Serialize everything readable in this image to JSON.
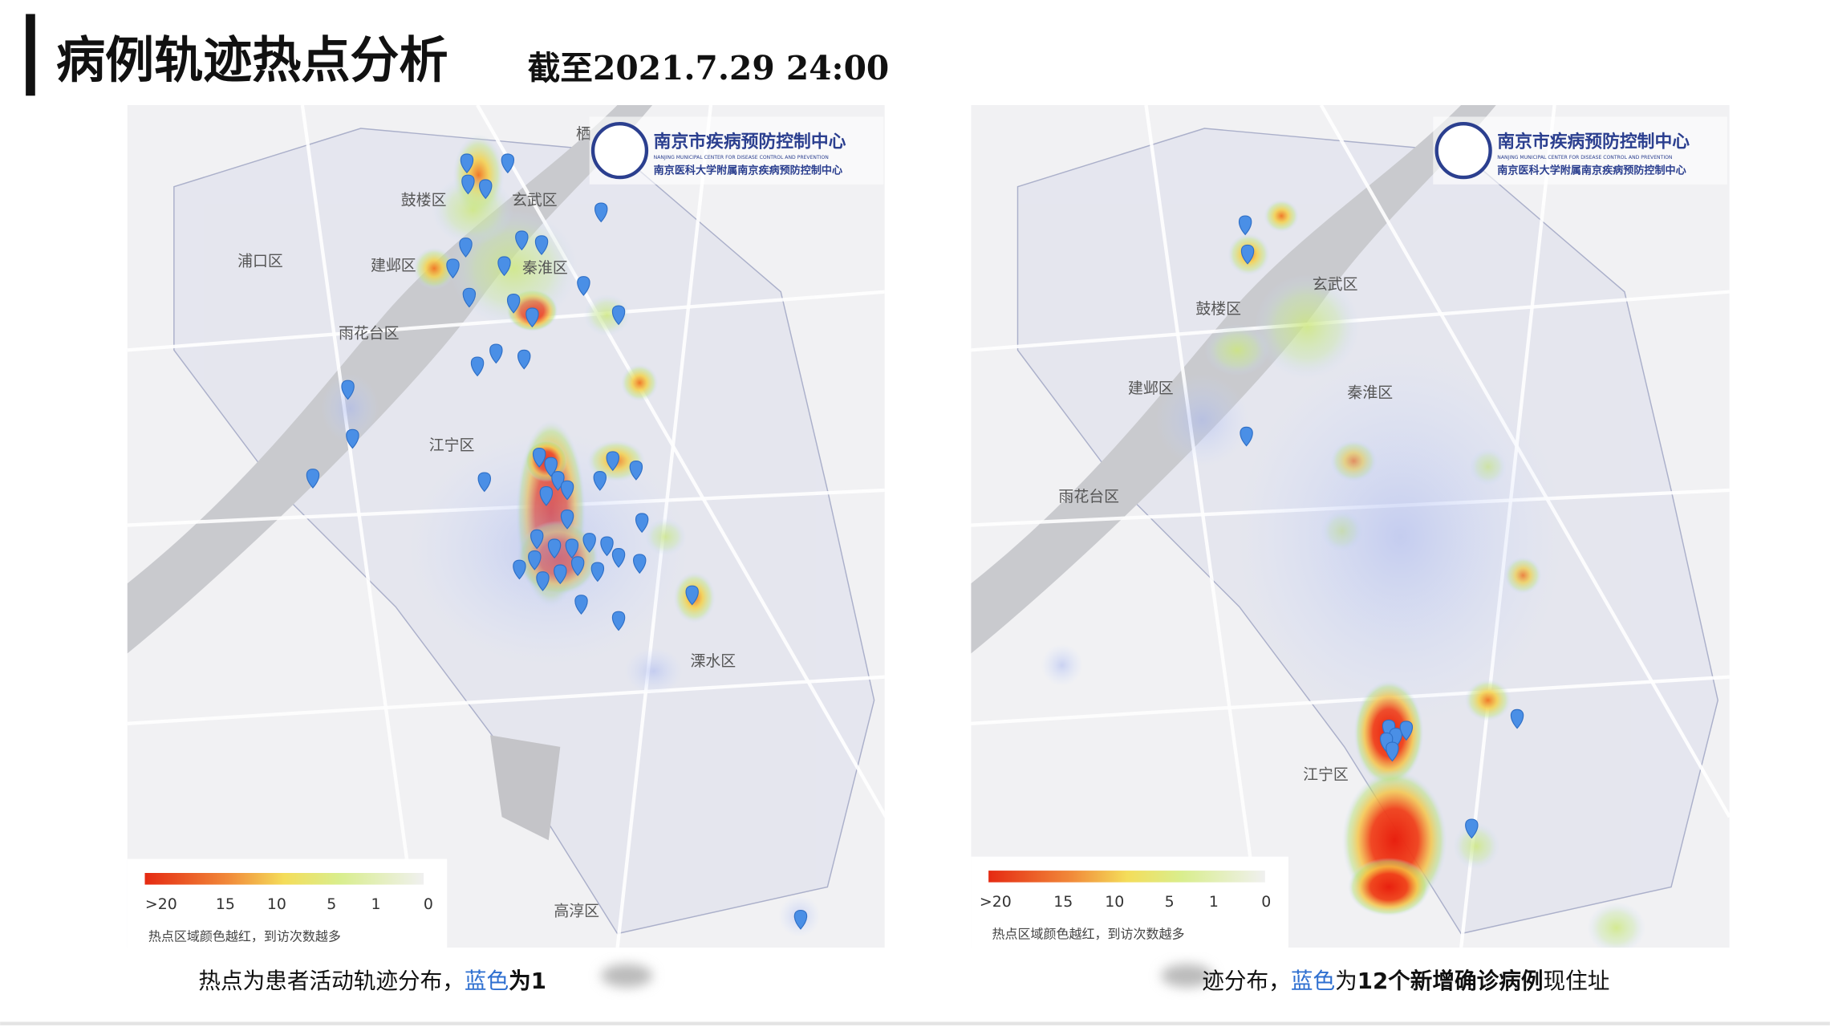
{
  "header": {
    "title": "病例轨迹热点分析",
    "subtitle": "截至2021.7.29 24:00"
  },
  "maps": [
    {
      "logo": {
        "name": "南京市疾病预防控制中心",
        "english": "NANJING MUNICIPAL CENTER FOR DISEASE CONTROL AND PREVENTION",
        "affiliation": "南京医科大学附属南京疾病预防控制中心"
      },
      "districts": [
        "栖",
        "鼓楼区",
        "玄武区",
        "浦口区",
        "建邺区",
        "秦淮区",
        "雨花台区",
        "江宁区",
        "溧水区",
        "高淳区"
      ],
      "legend": {
        "labels": [
          ">20",
          "15",
          "10",
          "5",
          "1",
          "0"
        ],
        "note": "热点区域颜色越红，到访次数越多"
      },
      "caption": [
        "热点为患者活动轨迹分布，",
        "蓝色",
        "为1"
      ]
    },
    {
      "logo": {
        "name": "南京市疾病预防控制中心",
        "english": "NANJING MUNICIPAL CENTER FOR DISEASE CONTROL AND PREVENTION",
        "affiliation": "南京医科大学附属南京疾病预防控制中心"
      },
      "districts": [
        "玄武区",
        "鼓楼区",
        "建邺区",
        "秦淮区",
        "雨花台区",
        "江宁区"
      ],
      "legend": {
        "labels": [
          ">20",
          "15",
          "10",
          "5",
          "1",
          "0"
        ],
        "note": "热点区域颜色越红，到访次数越多"
      },
      "caption": [
        "迹分布，",
        "蓝色",
        "为",
        "12个新增确诊病例",
        "现住址"
      ]
    }
  ]
}
